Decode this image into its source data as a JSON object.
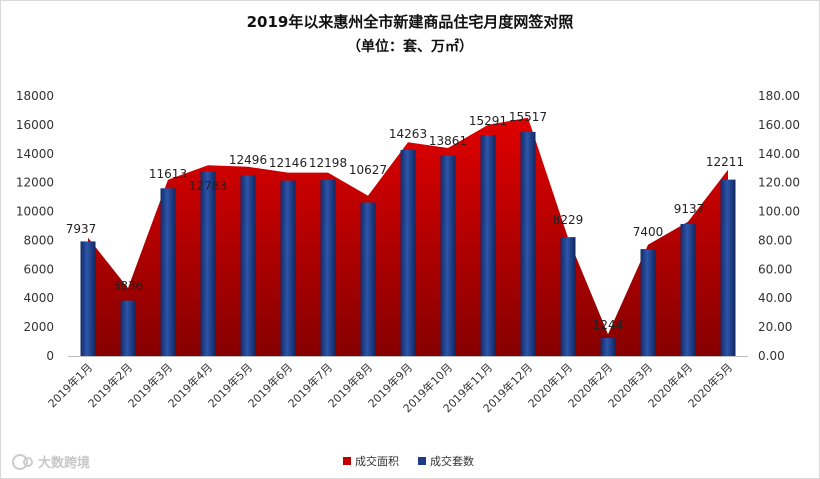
{
  "chart_data": {
    "type": "bar",
    "title": "2019年以来惠州全市新建商品住宅月度网签对照",
    "subtitle": "（单位：套、万㎡）",
    "categories": [
      "2019年1月",
      "2019年2月",
      "2019年3月",
      "2019年4月",
      "2019年5月",
      "2019年6月",
      "2019年7月",
      "2019年8月",
      "2019年9月",
      "2019年10月",
      "2019年11月",
      "2019年12月",
      "2020年1月",
      "2020年2月",
      "2020年3月",
      "2020年4月",
      "2020年5月"
    ],
    "series": [
      {
        "name": "成交面积",
        "type": "area",
        "axis": "right",
        "color": "#C00000",
        "values": [
          82,
          47,
          122,
          132,
          131,
          127,
          127,
          111,
          148,
          144,
          160,
          165,
          82,
          15,
          77,
          93,
          129
        ]
      },
      {
        "name": "成交套数",
        "type": "bar",
        "axis": "left",
        "color": "#1F3C88",
        "values": [
          7937,
          3836,
          11613,
          12783,
          12496,
          12146,
          12198,
          10627,
          14263,
          13861,
          15291,
          15517,
          8229,
          1244,
          7400,
          9137,
          12211
        ]
      }
    ],
    "y_left": {
      "ylim": [
        0,
        18000
      ],
      "ticks": [
        "0",
        "2000",
        "4000",
        "6000",
        "8000",
        "10000",
        "12000",
        "14000",
        "16000",
        "18000"
      ]
    },
    "y_right": {
      "ylim": [
        0,
        180
      ],
      "ticks": [
        "0.00",
        "20.00",
        "40.00",
        "60.00",
        "80.00",
        "100.00",
        "120.00",
        "140.00",
        "160.00",
        "180.00"
      ]
    },
    "legend": "bottom",
    "grid": false
  },
  "watermark": {
    "text": "大数跨境",
    "icon": "ring-logo-icon"
  }
}
